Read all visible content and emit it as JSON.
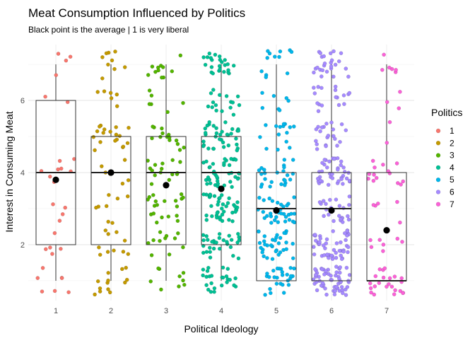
{
  "chart_data": {
    "type": "boxplot",
    "title": "Meat Consumption Influenced by Politics",
    "subtitle": "Black point is the average | 1 is very liberal",
    "xlabel": "Political Ideology",
    "ylabel": "Interest in Consuming Meat",
    "x_ticks": [
      "1",
      "2",
      "3",
      "4",
      "5",
      "6",
      "7"
    ],
    "y_ticks": [
      2,
      4,
      6
    ],
    "ylim": [
      0.45,
      7.55
    ],
    "grid": true,
    "legend": {
      "title": "Politics",
      "position": "right",
      "entries": [
        "1",
        "2",
        "3",
        "4",
        "5",
        "6",
        "7"
      ]
    },
    "colors": [
      "#F8766D",
      "#C49A00",
      "#53B400",
      "#00C094",
      "#00B6EB",
      "#A58AFF",
      "#FB61D7"
    ],
    "point_counts": [
      30,
      70,
      85,
      210,
      150,
      230,
      60
    ],
    "groups": [
      {
        "category": "1",
        "min": 1,
        "q1": 2,
        "median": 4,
        "q3": 6,
        "max": 7,
        "mean": 3.8
      },
      {
        "category": "2",
        "min": 1,
        "q1": 2,
        "median": 4,
        "q3": 5,
        "max": 7,
        "mean": 4.0
      },
      {
        "category": "3",
        "min": 1,
        "q1": 2,
        "median": 4,
        "q3": 5,
        "max": 7,
        "mean": 3.65
      },
      {
        "category": "4",
        "min": 1,
        "q1": 2,
        "median": 4,
        "q3": 5,
        "max": 7,
        "mean": 3.55
      },
      {
        "category": "5",
        "min": 1,
        "q1": 1,
        "median": 3,
        "q3": 4,
        "max": 7,
        "mean": 2.95
      },
      {
        "category": "6",
        "min": 1,
        "q1": 1,
        "median": 3,
        "q3": 4,
        "max": 7,
        "mean": 2.95
      },
      {
        "category": "7",
        "min": 1,
        "q1": 1,
        "median": 1,
        "q3": 4,
        "max": 7,
        "mean": 2.4
      }
    ],
    "jitter_distribution": [
      [
        7,
        5,
        4,
        5,
        3,
        3,
        3
      ],
      [
        10,
        10,
        8,
        12,
        12,
        8,
        10
      ],
      [
        10,
        12,
        14,
        18,
        12,
        8,
        11
      ],
      [
        28,
        32,
        33,
        42,
        33,
        22,
        20
      ],
      [
        30,
        30,
        25,
        25,
        18,
        10,
        12
      ],
      [
        52,
        45,
        28,
        35,
        25,
        20,
        25
      ],
      [
        20,
        10,
        6,
        8,
        4,
        5,
        7
      ]
    ]
  }
}
